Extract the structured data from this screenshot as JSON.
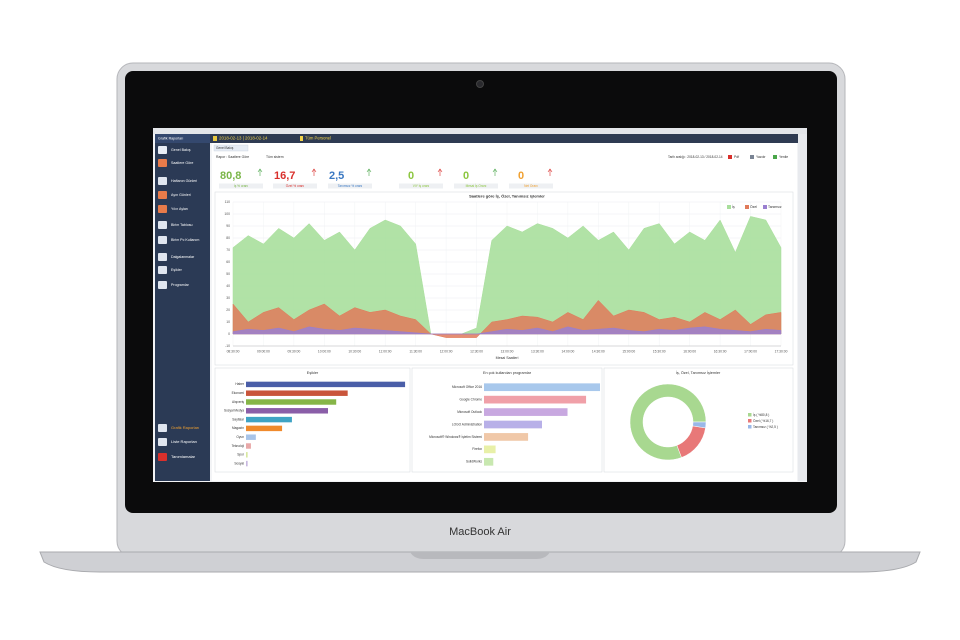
{
  "laptop": {
    "brand": "MacBook Air"
  },
  "app": {
    "sidebar_header": "Grafik Raporları",
    "date_range": "2018-02-13 | 2018-02-14",
    "personnel": "Tüm Personel",
    "menu": [
      "Genel Bakış",
      "Saatlere Göre",
      "Haftanın Günleri",
      "Ayın Günleri",
      "Yılın Ayları",
      "Birim Tablosu",
      "Birim Pc Kullanım",
      "Dalgalanmalar",
      "Eşikler",
      "Programlar"
    ],
    "bottom_menu": [
      "Grafik Raporları",
      "Liste Raporları",
      "Tanımlamalar"
    ],
    "tab": "Genel Bakış",
    "toolbar": {
      "report": "Rapor : Saatlere Göre",
      "scope": "Tüm sistem",
      "date": "Tarih aralığı : 2018-02-13 / 2018-02-14",
      "buttons": [
        "Pdf",
        "Yazdır",
        "Yenile"
      ]
    },
    "kpis": [
      {
        "value": "80,8",
        "label": "İş % oranı",
        "color": "#7ab648"
      },
      {
        "value": "16,7",
        "label": "Özel % oranı",
        "color": "#d9302c"
      },
      {
        "value": "2,5",
        "label": "Tanımsız % oranı",
        "color": "#3a78c2"
      },
      {
        "value": "0",
        "label": "VIY İş oranı",
        "color": "#8cc63f"
      },
      {
        "value": "0",
        "label": "Mesai İş Oranı",
        "color": "#8cc63f"
      },
      {
        "value": "0",
        "label": "Net Oranı",
        "color": "#f0a030"
      }
    ]
  },
  "chart_data": [
    {
      "type": "area",
      "title": "Saatlere göre İş, Özel, Tanımsız işlemler",
      "x_label": "Mesai Saatleri",
      "categories": [
        "08:30:00",
        null,
        "09:00:00",
        null,
        "09:30:00",
        null,
        "10:00:00",
        null,
        "10:30:00",
        null,
        "11:00:00",
        null,
        "11:30:00",
        null,
        "12:00:00",
        null,
        "12:30:00",
        null,
        "13:00:00",
        null,
        "13:30:00",
        null,
        "14:00:00",
        null,
        "14:30:00",
        null,
        "15:00:00",
        null,
        "15:30:00",
        null,
        "16:00:00",
        null,
        "16:30:00",
        null,
        "17:00:00",
        null,
        "17:30:00"
      ],
      "series": [
        {
          "name": "İş",
          "color": "#a9df9c",
          "values": [
            72,
            82,
            75,
            88,
            80,
            92,
            78,
            85,
            70,
            88,
            95,
            90,
            75,
            0,
            0,
            0,
            5,
            78,
            90,
            85,
            92,
            88,
            80,
            90,
            78,
            85,
            70,
            88,
            92,
            75,
            85,
            78,
            95,
            68,
            98,
            95,
            72
          ]
        },
        {
          "name": "Özel",
          "color": "#e07a5a",
          "values": [
            25,
            10,
            18,
            22,
            12,
            20,
            25,
            15,
            22,
            18,
            20,
            15,
            12,
            0,
            -3,
            -3,
            -3,
            10,
            12,
            15,
            14,
            10,
            18,
            12,
            28,
            15,
            20,
            18,
            12,
            14,
            10,
            18,
            12,
            20,
            8,
            16,
            18
          ]
        },
        {
          "name": "Tanımsız",
          "color": "#9a7fd0",
          "values": [
            2,
            4,
            3,
            5,
            2,
            6,
            4,
            3,
            5,
            4,
            3,
            2,
            1,
            0,
            0,
            0,
            0,
            2,
            4,
            3,
            5,
            2,
            6,
            3,
            4,
            5,
            3,
            2,
            4,
            3,
            5,
            6,
            4,
            3,
            2,
            4,
            3
          ]
        }
      ],
      "ylim": [
        -10,
        110
      ],
      "yticks": [
        -10,
        0,
        10,
        20,
        30,
        40,
        50,
        60,
        70,
        80,
        90,
        100,
        110
      ],
      "grid": true,
      "legend": "top-right"
    },
    {
      "type": "hbar",
      "title": "Eşikler",
      "categories": [
        "Haber",
        "Ekonomi",
        "Alışveriş",
        "Sosyal Medya",
        "Sayfalar",
        "Magazin",
        "Oyun",
        "Teknoloji",
        "Spor",
        "Sosyal"
      ],
      "values": [
        97,
        62,
        55,
        50,
        28,
        22,
        6,
        3,
        1,
        1
      ],
      "colors": [
        "#4a5ea8",
        "#c9553b",
        "#86b548",
        "#8a5ea8",
        "#3fa3c4",
        "#f08a2c",
        "#a8c4e8",
        "#e8a8a8",
        "#d8e8a0",
        "#c8b8e0"
      ],
      "xlim": [
        0,
        100
      ]
    },
    {
      "type": "hbar",
      "title": "En çok kullanılan programlar",
      "categories": [
        "Microsoft Office 2016",
        "Google Chrome",
        "Microsoft Outlook",
        "LOGO Administration",
        "Microsoft® Windows® İşletim Sistemi",
        "Firefox",
        "SolidWorks"
      ],
      "values": [
        100,
        88,
        72,
        50,
        38,
        10,
        8
      ],
      "colors": [
        "#a8c8ec",
        "#f0a0a8",
        "#c8a8e0",
        "#b8b0e8",
        "#f0c8a8",
        "#e8f0a8",
        "#c8e8b0"
      ],
      "xlim": [
        0,
        100
      ]
    },
    {
      "type": "pie",
      "title": "İş, Özel, Tanımsız İşlemler",
      "series": [
        {
          "name": "İş ( %80,8 )",
          "color": "#a8d890",
          "values": [
            80.8
          ]
        },
        {
          "name": "Özel ( %16,7 )",
          "color": "#e87878",
          "values": [
            16.7
          ]
        },
        {
          "name": "Tanımsız ( %2,5 )",
          "color": "#9ab8e8",
          "values": [
            2.5
          ]
        }
      ]
    }
  ]
}
